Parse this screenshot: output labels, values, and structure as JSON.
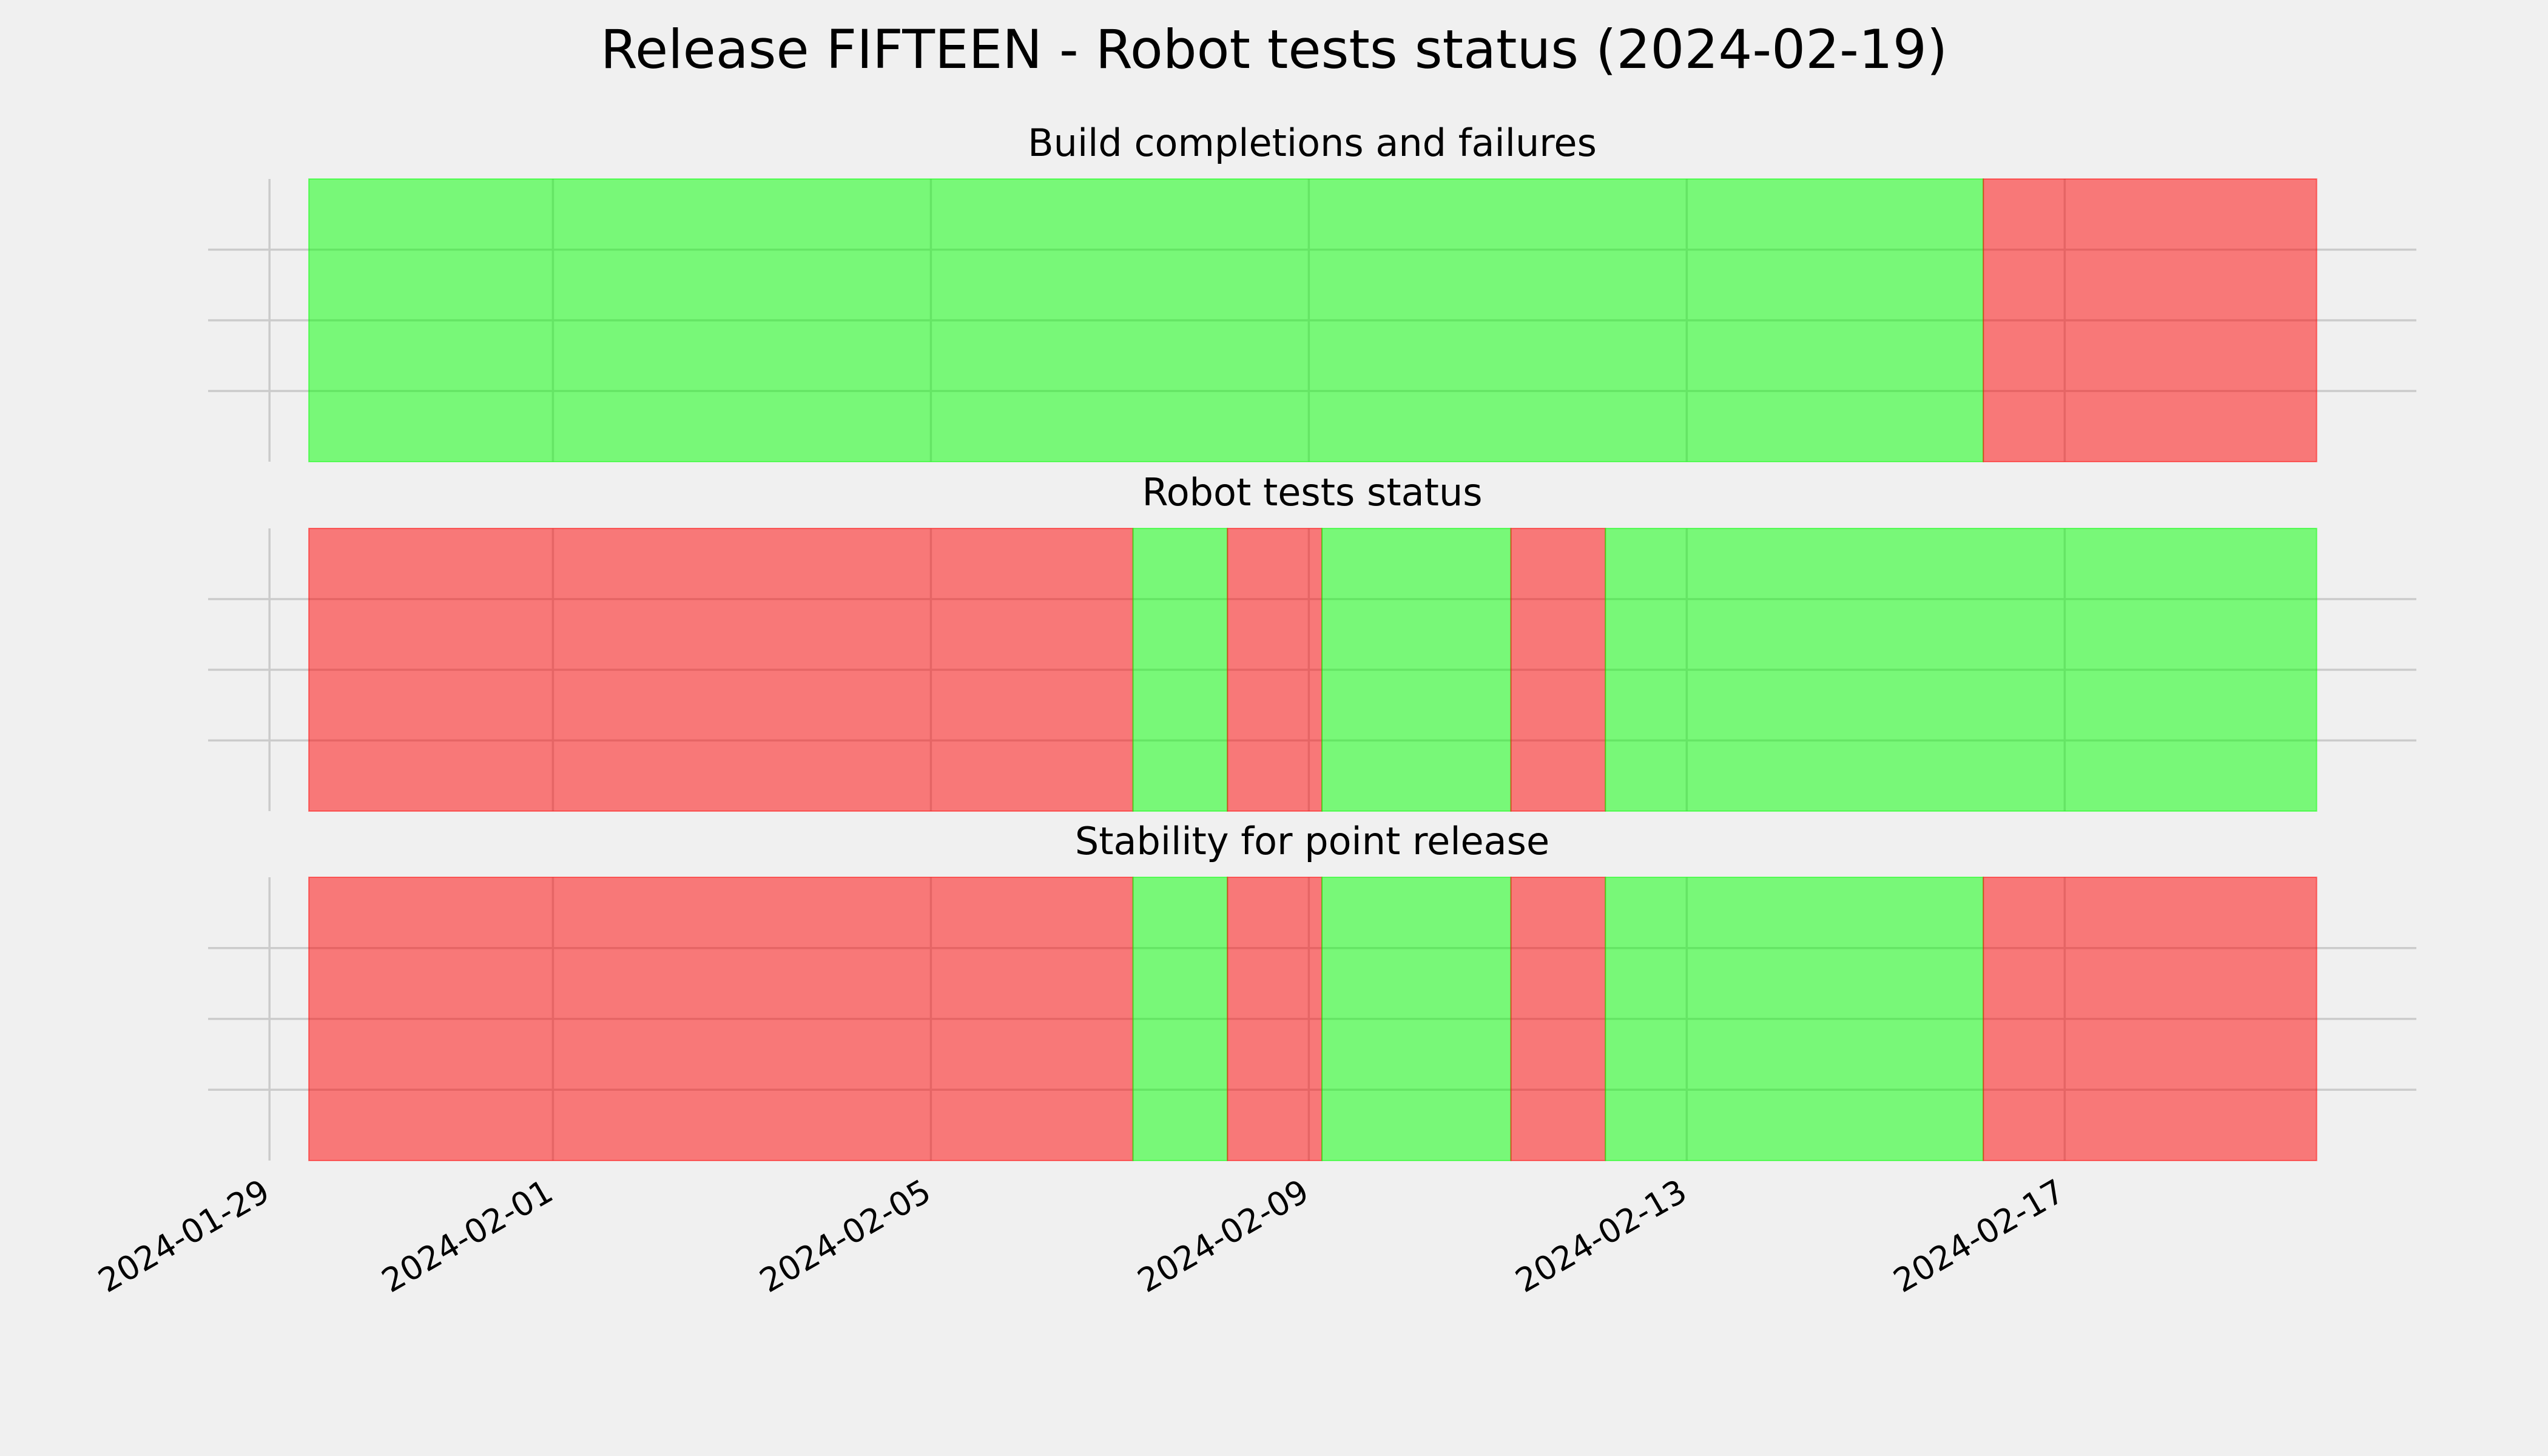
{
  "title": "Release FIFTEEN - Robot tests status (2024-02-19)",
  "chart_data": [
    {
      "type": "span",
      "title": "Build completions and failures",
      "alpha": 0.5,
      "spans": [
        {
          "start": "2024-01-29T10:00",
          "end": "2024-02-16T03:20",
          "color": "#00ff00"
        },
        {
          "start": "2024-02-16T03:20",
          "end": "2024-02-19T16:00",
          "color": "#ff0000"
        }
      ],
      "xlim": [
        "2024-01-28T08:24",
        "2024-02-20T17:20"
      ],
      "xticks": [
        "2024-01-29",
        "2024-02-01",
        "2024-02-05",
        "2024-02-09",
        "2024-02-13",
        "2024-02-17"
      ],
      "ylim": [
        0,
        1
      ],
      "yticks": [
        0.25,
        0.5,
        0.75
      ],
      "grid": true
    },
    {
      "type": "span",
      "title": "Robot tests status",
      "alpha": 0.5,
      "spans": [
        {
          "start": "2024-01-29T10:00",
          "end": "2024-02-07T03:20",
          "color": "#ff0000"
        },
        {
          "start": "2024-02-07T03:20",
          "end": "2024-02-08T03:20",
          "color": "#00ff00"
        },
        {
          "start": "2024-02-08T03:20",
          "end": "2024-02-09T03:20",
          "color": "#ff0000"
        },
        {
          "start": "2024-02-09T03:20",
          "end": "2024-02-11T03:20",
          "color": "#00ff00"
        },
        {
          "start": "2024-02-11T03:20",
          "end": "2024-02-12T03:20",
          "color": "#ff0000"
        },
        {
          "start": "2024-02-12T03:20",
          "end": "2024-02-19T16:00",
          "color": "#00ff00"
        }
      ],
      "xlim": [
        "2024-01-28T08:24",
        "2024-02-20T17:20"
      ],
      "xticks": [
        "2024-01-29",
        "2024-02-01",
        "2024-02-05",
        "2024-02-09",
        "2024-02-13",
        "2024-02-17"
      ],
      "ylim": [
        0,
        1
      ],
      "yticks": [
        0.25,
        0.5,
        0.75
      ],
      "grid": true
    },
    {
      "type": "span",
      "title": "Stability for point release",
      "alpha": 0.5,
      "spans": [
        {
          "start": "2024-01-29T10:00",
          "end": "2024-02-07T03:20",
          "color": "#ff0000"
        },
        {
          "start": "2024-02-07T03:20",
          "end": "2024-02-08T03:20",
          "color": "#00ff00"
        },
        {
          "start": "2024-02-08T03:20",
          "end": "2024-02-09T03:20",
          "color": "#ff0000"
        },
        {
          "start": "2024-02-09T03:20",
          "end": "2024-02-11T03:20",
          "color": "#00ff00"
        },
        {
          "start": "2024-02-11T03:20",
          "end": "2024-02-12T03:20",
          "color": "#ff0000"
        },
        {
          "start": "2024-02-12T03:20",
          "end": "2024-02-16T03:20",
          "color": "#00ff00"
        },
        {
          "start": "2024-02-16T03:20",
          "end": "2024-02-19T16:00",
          "color": "#ff0000"
        }
      ],
      "xlim": [
        "2024-01-28T08:24",
        "2024-02-20T17:20"
      ],
      "xticks": [
        "2024-01-29",
        "2024-02-01",
        "2024-02-05",
        "2024-02-09",
        "2024-02-13",
        "2024-02-17"
      ],
      "ylim": [
        0,
        1
      ],
      "yticks": [
        0.25,
        0.5,
        0.75
      ],
      "grid": true
    }
  ]
}
